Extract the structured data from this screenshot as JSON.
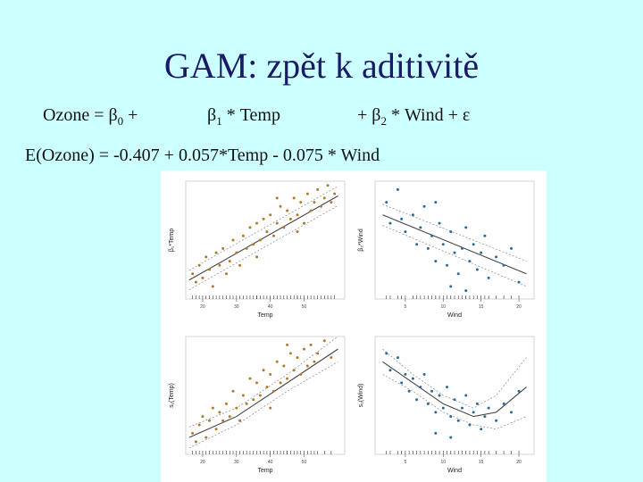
{
  "slide": {
    "title": "GAM: zpět k aditivitě",
    "eq1": {
      "lhs": "Ozone  = β",
      "lhs_sub": "0",
      "lhs_plus": " +",
      "t1": "β",
      "t1_sub": "1",
      "t1_rest": " * Temp",
      "t2_pre": "+  β",
      "t2_sub": "2",
      "t2_rest": " * Wind  +  ε"
    },
    "eq2": "E(Ozone) = -0.407 + 0.057*Temp  -  0.075 * Wind"
  },
  "colors": {
    "background": "#ccffff",
    "title": "#1a1a66",
    "temp_points": "#b07a2a",
    "wind_points": "#2a6a9a"
  },
  "chart_data": [
    {
      "type": "scatter",
      "panel": "top-left",
      "xlabel": "Temp",
      "ylabel": "β₁*Temp",
      "x_ticks": [
        "20",
        "30",
        "40",
        "50"
      ],
      "xlim": [
        15,
        62
      ],
      "ylim": [
        -1.4,
        1.4
      ],
      "fit_line": [
        [
          16,
          -0.95
        ],
        [
          60,
          1.05
        ]
      ],
      "band": [
        [
          [
            16,
            -1.18
          ],
          [
            60,
            0.82
          ]
        ],
        [
          [
            16,
            -0.72
          ],
          [
            60,
            1.28
          ]
        ]
      ],
      "points": [
        [
          17,
          -0.8
        ],
        [
          18,
          -1.0
        ],
        [
          19,
          -0.6
        ],
        [
          20,
          -0.9
        ],
        [
          21,
          -0.4
        ],
        [
          22,
          -0.7
        ],
        [
          23,
          -1.1
        ],
        [
          24,
          -0.3
        ],
        [
          25,
          -0.6
        ],
        [
          26,
          -0.2
        ],
        [
          27,
          -0.8
        ],
        [
          28,
          -0.5
        ],
        [
          29,
          0.0
        ],
        [
          30,
          -0.3
        ],
        [
          31,
          -0.6
        ],
        [
          32,
          0.1
        ],
        [
          33,
          -0.2
        ],
        [
          34,
          0.3
        ],
        [
          35,
          -0.1
        ],
        [
          36,
          0.4
        ],
        [
          37,
          0.0
        ],
        [
          38,
          0.5
        ],
        [
          39,
          0.2
        ],
        [
          40,
          0.6
        ],
        [
          41,
          0.1
        ],
        [
          42,
          0.4
        ],
        [
          43,
          0.8
        ],
        [
          44,
          0.3
        ],
        [
          45,
          0.7
        ],
        [
          46,
          0.5
        ],
        [
          47,
          1.0
        ],
        [
          48,
          0.6
        ],
        [
          49,
          0.9
        ],
        [
          50,
          0.4
        ],
        [
          51,
          1.1
        ],
        [
          52,
          0.7
        ],
        [
          53,
          0.9
        ],
        [
          54,
          1.2
        ],
        [
          55,
          0.8
        ],
        [
          56,
          1.0
        ],
        [
          57,
          1.3
        ],
        [
          58,
          0.9
        ],
        [
          59,
          1.1
        ],
        [
          36,
          -0.4
        ],
        [
          42,
          1.0
        ],
        [
          48,
          0.2
        ]
      ]
    },
    {
      "type": "scatter",
      "panel": "top-right",
      "xlabel": "Wind",
      "ylabel": "β₂*Wind",
      "x_ticks": [
        "5",
        "10",
        "15",
        "20"
      ],
      "xlim": [
        1,
        22
      ],
      "ylim": [
        -1.4,
        1.4
      ],
      "fit_line": [
        [
          2,
          0.6
        ],
        [
          21,
          -0.8
        ]
      ],
      "band": [
        [
          [
            2,
            0.35
          ],
          [
            21,
            -1.1
          ]
        ],
        [
          [
            2,
            0.85
          ],
          [
            21,
            -0.5
          ]
        ]
      ],
      "points": [
        [
          2.5,
          0.9
        ],
        [
          3,
          0.4
        ],
        [
          4,
          1.2
        ],
        [
          4.5,
          0.5
        ],
        [
          5,
          0.2
        ],
        [
          6,
          0.6
        ],
        [
          6.5,
          -0.1
        ],
        [
          7,
          0.3
        ],
        [
          7.5,
          0.8
        ],
        [
          8,
          -0.2
        ],
        [
          8.5,
          0.1
        ],
        [
          9,
          -0.5
        ],
        [
          9.5,
          0.4
        ],
        [
          10,
          -0.1
        ],
        [
          10.5,
          -0.6
        ],
        [
          11,
          0.2
        ],
        [
          11.5,
          -0.3
        ],
        [
          12,
          -0.8
        ],
        [
          12.5,
          -0.2
        ],
        [
          13,
          0.3
        ],
        [
          13.5,
          -0.5
        ],
        [
          14,
          -0.1
        ],
        [
          14.5,
          -0.7
        ],
        [
          15,
          -0.3
        ],
        [
          15.5,
          0.1
        ],
        [
          16,
          -0.9
        ],
        [
          17,
          -0.4
        ],
        [
          18,
          -0.6
        ],
        [
          19,
          -0.2
        ],
        [
          20,
          -1.0
        ],
        [
          11,
          -1.1
        ],
        [
          9,
          0.9
        ],
        [
          13,
          -1.2
        ]
      ]
    },
    {
      "type": "scatter",
      "panel": "bottom-left",
      "xlabel": "Temp",
      "ylabel": "s₁(Temp)",
      "x_ticks": [
        "20",
        "30",
        "40",
        "50"
      ],
      "xlim": [
        15,
        62
      ],
      "ylim": [
        -1.4,
        1.4
      ],
      "fit_line": [
        [
          16,
          -1.0
        ],
        [
          30,
          -0.5
        ],
        [
          45,
          0.3
        ],
        [
          60,
          1.1
        ]
      ],
      "band": [
        [
          [
            16,
            -1.25
          ],
          [
            30,
            -0.7
          ],
          [
            45,
            0.1
          ],
          [
            60,
            0.8
          ]
        ],
        [
          [
            16,
            -0.75
          ],
          [
            30,
            -0.3
          ],
          [
            45,
            0.5
          ],
          [
            60,
            1.4
          ]
        ]
      ],
      "points": [
        [
          17,
          -0.9
        ],
        [
          18,
          -1.1
        ],
        [
          19,
          -0.7
        ],
        [
          20,
          -0.5
        ],
        [
          21,
          -1.0
        ],
        [
          22,
          -0.6
        ],
        [
          23,
          -0.3
        ],
        [
          24,
          -0.8
        ],
        [
          25,
          -0.4
        ],
        [
          26,
          -0.6
        ],
        [
          27,
          -0.2
        ],
        [
          28,
          -0.5
        ],
        [
          29,
          0.1
        ],
        [
          30,
          -0.3
        ],
        [
          31,
          -0.6
        ],
        [
          32,
          0.0
        ],
        [
          33,
          -0.2
        ],
        [
          34,
          0.4
        ],
        [
          35,
          -0.1
        ],
        [
          36,
          0.3
        ],
        [
          37,
          0.0
        ],
        [
          38,
          0.6
        ],
        [
          39,
          0.2
        ],
        [
          40,
          0.5
        ],
        [
          41,
          0.1
        ],
        [
          42,
          0.8
        ],
        [
          43,
          0.3
        ],
        [
          44,
          0.7
        ],
        [
          45,
          0.4
        ],
        [
          46,
          1.0
        ],
        [
          47,
          0.6
        ],
        [
          48,
          0.9
        ],
        [
          49,
          0.5
        ],
        [
          50,
          1.1
        ],
        [
          51,
          0.7
        ],
        [
          52,
          1.2
        ],
        [
          53,
          0.8
        ],
        [
          54,
          1.0
        ],
        [
          56,
          1.3
        ],
        [
          58,
          0.9
        ],
        [
          40,
          -0.3
        ],
        [
          45,
          1.2
        ]
      ]
    },
    {
      "type": "scatter",
      "panel": "bottom-right",
      "xlabel": "Wind",
      "ylabel": "s₂(Wind)",
      "x_ticks": [
        "5",
        "10",
        "15",
        "20"
      ],
      "xlim": [
        1,
        22
      ],
      "ylim": [
        -1.4,
        1.4
      ],
      "fit_line": [
        [
          2,
          0.8
        ],
        [
          6,
          0.3
        ],
        [
          10,
          -0.2
        ],
        [
          14,
          -0.5
        ],
        [
          17,
          -0.4
        ],
        [
          21,
          0.2
        ]
      ],
      "band": [
        [
          [
            2,
            0.5
          ],
          [
            6,
            0.1
          ],
          [
            10,
            -0.4
          ],
          [
            14,
            -0.7
          ],
          [
            17,
            -0.8
          ],
          [
            21,
            -0.5
          ]
        ],
        [
          [
            2,
            1.1
          ],
          [
            6,
            0.5
          ],
          [
            10,
            0.0
          ],
          [
            14,
            -0.3
          ],
          [
            17,
            0.0
          ],
          [
            21,
            0.9
          ]
        ]
      ],
      "points": [
        [
          2.5,
          1.0
        ],
        [
          3,
          0.6
        ],
        [
          4,
          0.9
        ],
        [
          4.5,
          0.3
        ],
        [
          5,
          0.5
        ],
        [
          5.5,
          0.1
        ],
        [
          6,
          0.4
        ],
        [
          6.5,
          -0.1
        ],
        [
          7,
          0.2
        ],
        [
          7.5,
          0.5
        ],
        [
          8,
          -0.2
        ],
        [
          8.5,
          0.1
        ],
        [
          9,
          -0.4
        ],
        [
          9.5,
          0.0
        ],
        [
          10,
          -0.3
        ],
        [
          10.5,
          0.2
        ],
        [
          11,
          -0.5
        ],
        [
          11.5,
          -0.1
        ],
        [
          12,
          -0.6
        ],
        [
          12.5,
          -0.3
        ],
        [
          13,
          0.0
        ],
        [
          13.5,
          -0.7
        ],
        [
          14,
          -0.4
        ],
        [
          14.5,
          -0.2
        ],
        [
          15,
          -0.8
        ],
        [
          15.5,
          -0.5
        ],
        [
          16,
          -0.3
        ],
        [
          17,
          -0.6
        ],
        [
          18,
          -0.2
        ],
        [
          19,
          -0.4
        ],
        [
          20,
          0.1
        ],
        [
          11,
          -1.0
        ],
        [
          9,
          -0.9
        ]
      ]
    }
  ]
}
